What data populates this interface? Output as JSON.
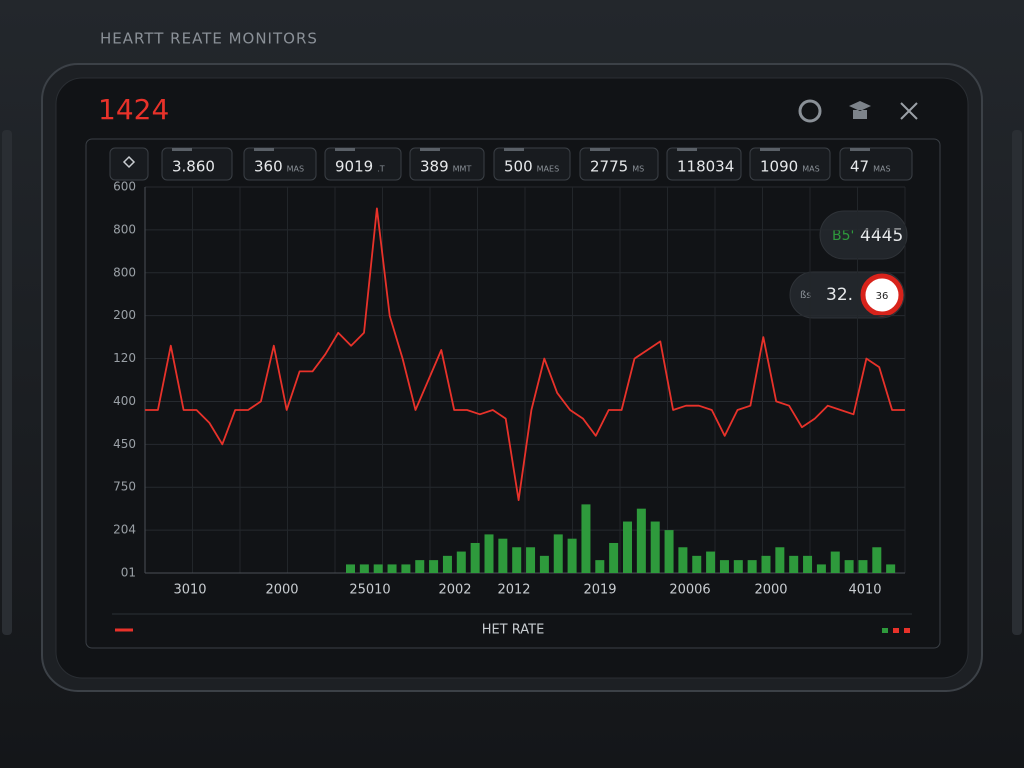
{
  "header": {
    "title": "HEARTT REATE MONITORS",
    "reading": "1424"
  },
  "stats": [
    {
      "value": "3.860",
      "unit": ""
    },
    {
      "value": "360",
      "unit": "MAS"
    },
    {
      "value": "9019",
      "unit": ".T"
    },
    {
      "value": "389",
      "unit": "MMT"
    },
    {
      "value": "500",
      "unit": "MAES"
    },
    {
      "value": "2775",
      "unit": "MS"
    },
    {
      "value": "118034",
      "unit": ""
    },
    {
      "value": "1090",
      "unit": "MAS"
    },
    {
      "value": "47",
      "unit": "MAS"
    }
  ],
  "badges": [
    {
      "label": "B5'",
      "value": "4445"
    },
    {
      "label": "ßs",
      "value": "32.",
      "alert": "36"
    }
  ],
  "chart_data": {
    "type": "line",
    "line_color": "#e8322a",
    "bar_color": "#2e9a3c",
    "grid": true,
    "ylim": [
      0,
      9
    ],
    "yticks": [
      {
        "value": 9,
        "label": "600"
      },
      {
        "value": 8,
        "label": "800"
      },
      {
        "value": 7,
        "label": "800"
      },
      {
        "value": 6,
        "label": "200"
      },
      {
        "value": 5,
        "label": "120"
      },
      {
        "value": 4,
        "label": "400"
      },
      {
        "value": 3,
        "label": "450"
      },
      {
        "value": 2,
        "label": "750"
      },
      {
        "value": 1,
        "label": "204"
      },
      {
        "value": 0,
        "label": "01"
      }
    ],
    "xlabels": [
      "3010",
      "2000",
      "25010",
      "2002",
      "2012",
      "2019",
      "20006",
      "2000",
      "4010"
    ],
    "line_values": [
      3.8,
      3.8,
      5.3,
      3.8,
      3.8,
      3.5,
      3.0,
      3.8,
      3.8,
      4.0,
      5.3,
      3.8,
      4.7,
      4.7,
      5.1,
      5.6,
      5.3,
      5.6,
      8.5,
      6.0,
      5.0,
      3.8,
      4.5,
      5.2,
      3.8,
      3.8,
      3.7,
      3.8,
      3.6,
      1.7,
      3.8,
      5.0,
      4.2,
      3.8,
      3.6,
      3.2,
      3.8,
      3.8,
      5.0,
      5.2,
      5.4,
      3.8,
      3.9,
      3.9,
      3.8,
      3.2,
      3.8,
      3.9,
      5.5,
      4.0,
      3.9,
      3.4,
      3.6,
      3.9,
      3.8,
      3.7,
      5.0,
      4.8,
      3.8,
      3.8
    ],
    "bar_values": [
      0.2,
      0.2,
      0.2,
      0.2,
      0.2,
      0.3,
      0.3,
      0.4,
      0.5,
      0.7,
      0.9,
      0.8,
      0.6,
      0.6,
      0.4,
      0.9,
      0.8,
      1.6,
      0.3,
      0.7,
      1.2,
      1.5,
      1.2,
      1.0,
      0.6,
      0.4,
      0.5,
      0.3,
      0.3,
      0.3,
      0.4,
      0.6,
      0.4,
      0.4,
      0.2,
      0.5,
      0.3,
      0.3,
      0.6,
      0.2
    ],
    "footer_label": "HET RATE"
  }
}
